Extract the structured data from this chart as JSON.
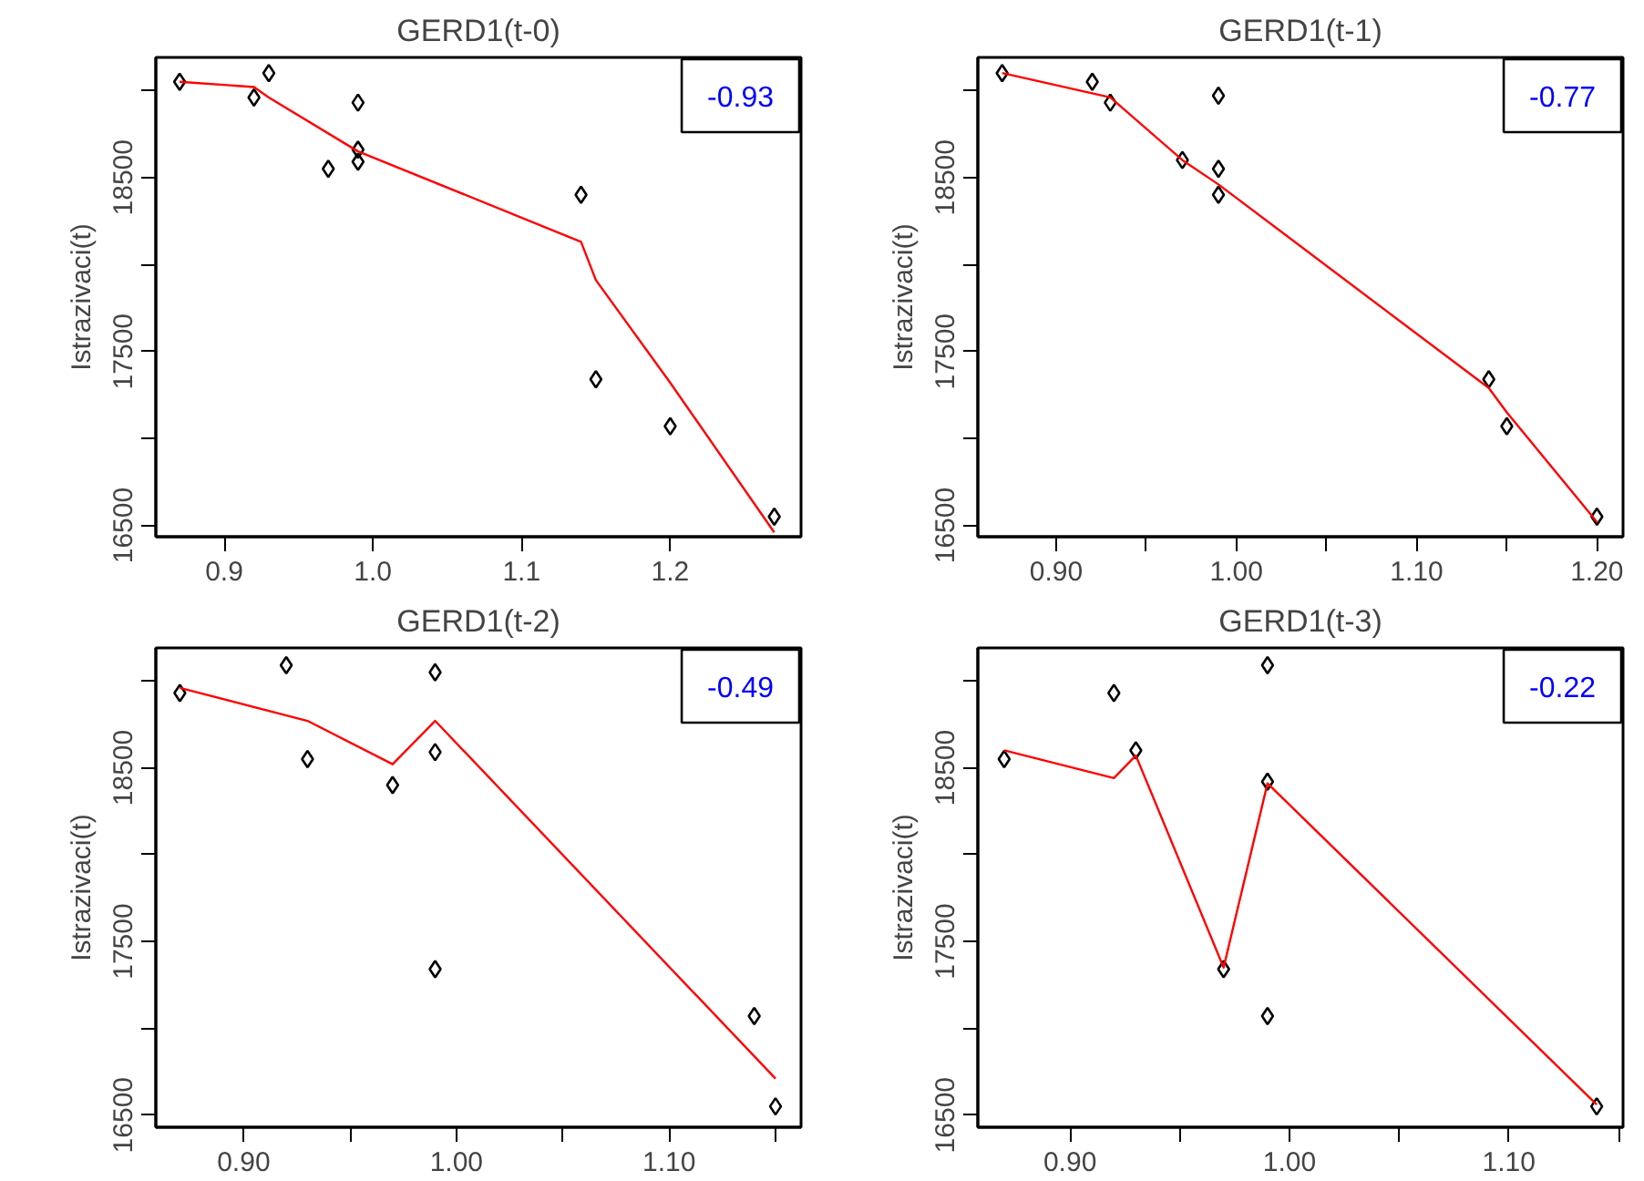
{
  "chart_data": [
    {
      "type": "scatter",
      "title": "GERD1(t-0)",
      "ylabel": "Istrazivaci(t)",
      "xlim": [
        0.854,
        1.288
      ],
      "xticks": [
        {
          "value": 0.9,
          "label": "0.9"
        },
        {
          "value": 1.0,
          "label": "1.0"
        },
        {
          "value": 1.1,
          "label": "1.1"
        },
        {
          "value": 1.2,
          "label": "1.2"
        }
      ],
      "ylim": [
        16435,
        19190
      ],
      "yticks": [
        16500,
        {
          "value": 17000,
          "label": null
        },
        17500,
        {
          "value": 18000,
          "label": null
        },
        18500,
        {
          "value": 19000,
          "label": null
        }
      ],
      "grid": false,
      "annotations": [
        "-0.93"
      ],
      "series": [
        {
          "type": "scatter",
          "marker": "diamond",
          "color": "#000000",
          "x": [
            0.87,
            0.92,
            0.93,
            0.97,
            0.99,
            0.99,
            0.99,
            1.14,
            1.15,
            1.2,
            1.27
          ],
          "values": [
            19050,
            18960,
            19100,
            18550,
            18930,
            18660,
            18590,
            18400,
            17340,
            17070,
            16550
          ]
        },
        {
          "type": "line",
          "color": "#ff0000",
          "x": [
            0.87,
            0.92,
            0.93,
            0.99,
            1.14,
            1.15,
            1.2,
            1.27
          ],
          "values": [
            19050,
            19020,
            18960,
            18650,
            18130,
            17910,
            17320,
            16460
          ]
        }
      ]
    },
    {
      "type": "scatter",
      "title": "GERD1(t-1)",
      "ylabel": "Istrazivaci(t)",
      "xlim": [
        0.8565,
        1.2145
      ],
      "xticks": [
        {
          "value": 0.9,
          "label": "0.90"
        },
        {
          "value": 0.95,
          "label": null
        },
        {
          "value": 1.0,
          "label": "1.00"
        },
        {
          "value": 1.05,
          "label": null
        },
        {
          "value": 1.1,
          "label": "1.10"
        },
        {
          "value": 1.15,
          "label": null
        },
        {
          "value": 1.2,
          "label": "1.20"
        }
      ],
      "ylim": [
        16435,
        19190
      ],
      "yticks": [
        16500,
        {
          "value": 17000,
          "label": null
        },
        17500,
        {
          "value": 18000,
          "label": null
        },
        18500,
        {
          "value": 19000,
          "label": null
        }
      ],
      "grid": false,
      "annotations": [
        "-0.77"
      ],
      "series": [
        {
          "type": "scatter",
          "marker": "diamond",
          "color": "#000000",
          "x": [
            0.87,
            0.92,
            0.93,
            0.97,
            0.99,
            0.99,
            0.99,
            1.14,
            1.15,
            1.2
          ],
          "values": [
            19100,
            19050,
            18930,
            18600,
            18970,
            18550,
            18400,
            17340,
            17070,
            16550
          ]
        },
        {
          "type": "line",
          "color": "#ff0000",
          "x": [
            0.87,
            0.93,
            0.97,
            0.99,
            1.14,
            1.15,
            1.2
          ],
          "values": [
            19100,
            18960,
            18600,
            18460,
            17290,
            17150,
            16520
          ]
        }
      ]
    },
    {
      "type": "scatter",
      "title": "GERD1(t-2)",
      "ylabel": "Istrazivaci(t)",
      "xlim": [
        0.8587,
        1.162
      ],
      "xticks": [
        {
          "value": 0.9,
          "label": "0.90"
        },
        {
          "value": 0.95,
          "label": null
        },
        {
          "value": 1.0,
          "label": "1.00"
        },
        {
          "value": 1.05,
          "label": null
        },
        {
          "value": 1.1,
          "label": "1.10"
        },
        {
          "value": 1.15,
          "label": null
        }
      ],
      "ylim": [
        16430,
        19190
      ],
      "yticks": [
        16500,
        {
          "value": 17000,
          "label": null
        },
        17500,
        {
          "value": 18000,
          "label": null
        },
        18500,
        {
          "value": 19000,
          "label": null
        }
      ],
      "grid": false,
      "annotations": [
        "-0.49"
      ],
      "series": [
        {
          "type": "scatter",
          "marker": "diamond",
          "color": "#000000",
          "x": [
            0.87,
            0.92,
            0.93,
            0.97,
            0.99,
            0.99,
            0.99,
            1.14,
            1.15
          ],
          "values": [
            18930,
            19090,
            18550,
            18400,
            19050,
            18590,
            17340,
            17070,
            16550
          ]
        },
        {
          "type": "line",
          "color": "#ff0000",
          "x": [
            0.87,
            0.93,
            0.97,
            0.99,
            1.15
          ],
          "values": [
            18960,
            18770,
            18520,
            18770,
            16710
          ]
        }
      ]
    },
    {
      "type": "scatter",
      "title": "GERD1(t-3)",
      "ylabel": "Istrazivaci(t)",
      "xlim": [
        0.858,
        1.152
      ],
      "xticks": [
        {
          "value": 0.9,
          "label": "0.90"
        },
        {
          "value": 0.95,
          "label": null
        },
        {
          "value": 1.0,
          "label": "1.00"
        },
        {
          "value": 1.05,
          "label": null
        },
        {
          "value": 1.1,
          "label": "1.10"
        },
        {
          "value": 1.15,
          "label": null
        }
      ],
      "ylim": [
        16430,
        19190
      ],
      "yticks": [
        16500,
        {
          "value": 17000,
          "label": null
        },
        17500,
        {
          "value": 18000,
          "label": null
        },
        18500,
        {
          "value": 19000,
          "label": null
        }
      ],
      "grid": false,
      "annotations": [
        "-0.22"
      ],
      "series": [
        {
          "type": "scatter",
          "marker": "diamond",
          "color": "#000000",
          "x": [
            0.87,
            0.92,
            0.93,
            0.97,
            0.99,
            0.99,
            0.99,
            1.14
          ],
          "values": [
            18550,
            18930,
            18600,
            17340,
            19090,
            18420,
            17070,
            16550
          ]
        },
        {
          "type": "line",
          "color": "#ff0000",
          "x": [
            0.87,
            0.92,
            0.93,
            0.97,
            0.99,
            1.14
          ],
          "values": [
            18600,
            18440,
            18570,
            17350,
            18410,
            16560
          ]
        }
      ]
    }
  ]
}
